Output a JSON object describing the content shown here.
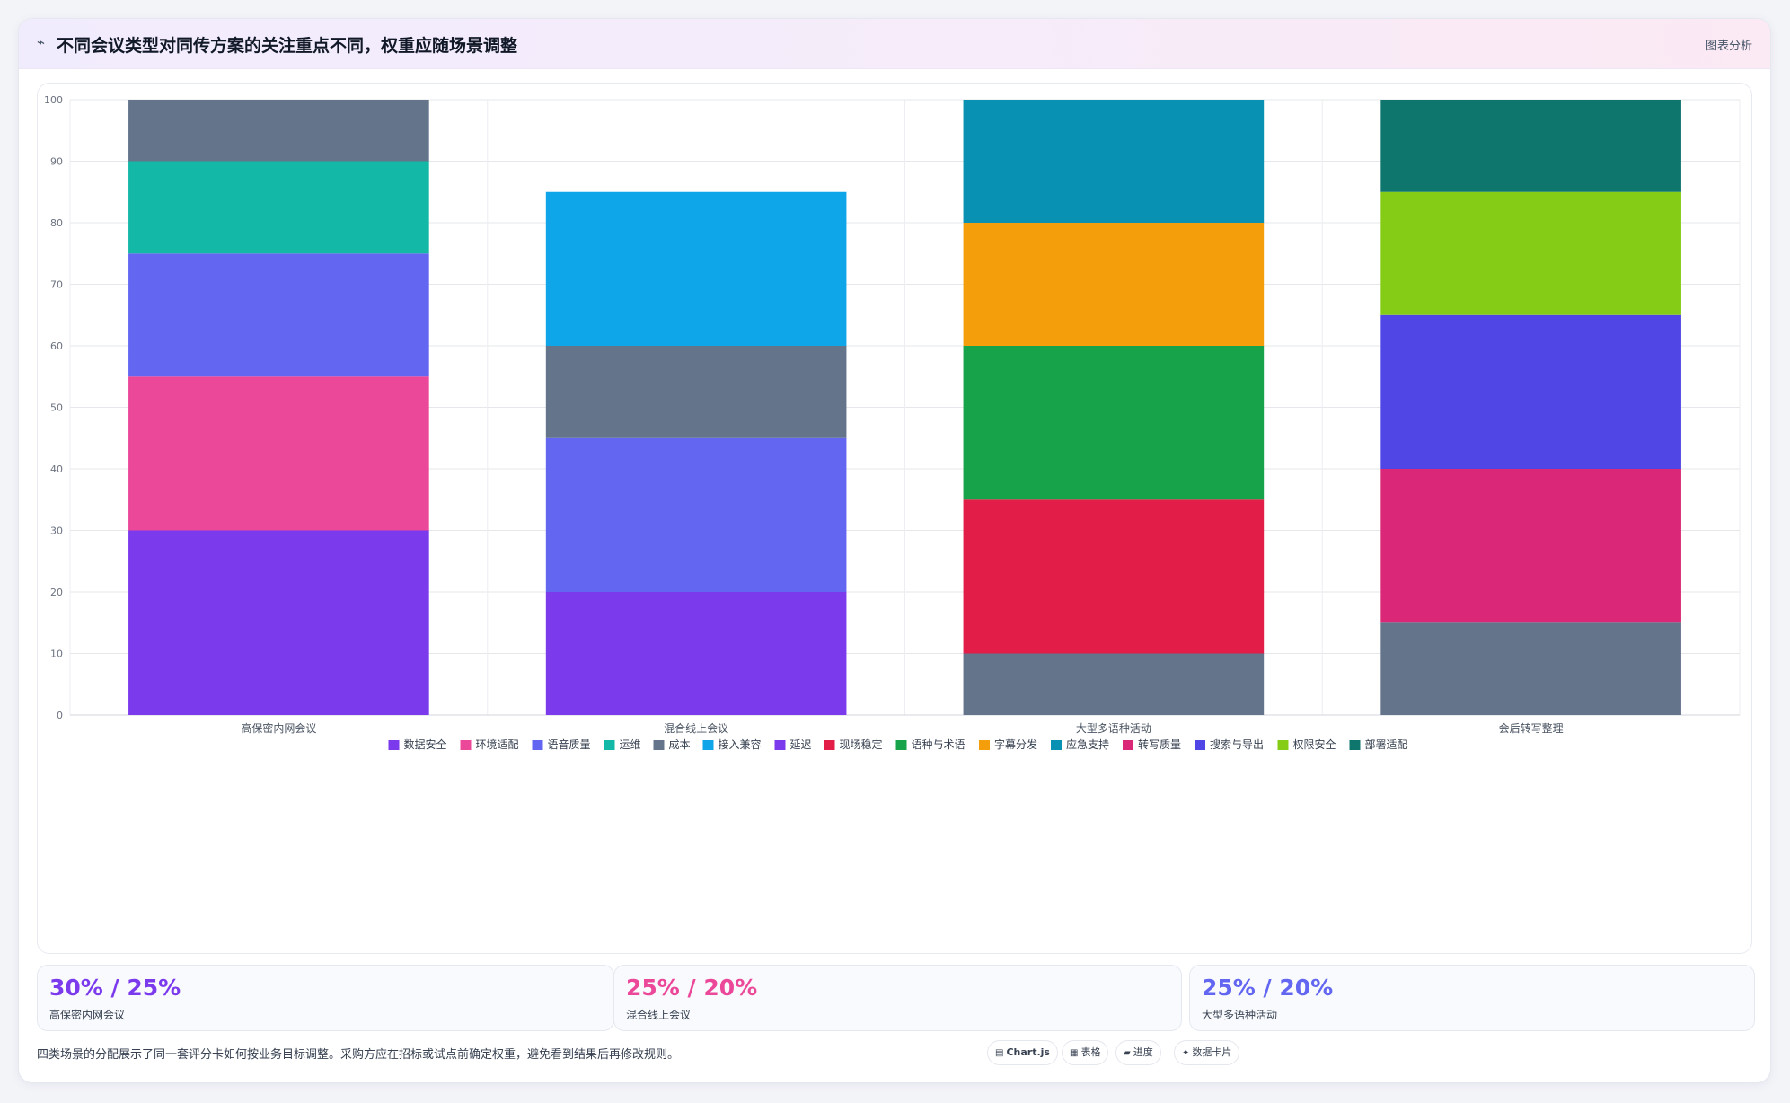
{
  "header": {
    "icon": "sparkline-icon",
    "title": "不同会议类型对同传方案的关注重点不同，权重应随场景调整",
    "action_label": "图表分析"
  },
  "chart_data": {
    "type": "bar",
    "stacked": true,
    "categories": [
      "高保密内网会议",
      "混合线上会议",
      "大型多语种活动",
      "会后转写整理"
    ],
    "ylim": [
      0,
      100
    ],
    "yticks": [
      0,
      10,
      20,
      30,
      40,
      50,
      60,
      70,
      80,
      90,
      100
    ],
    "grid": true,
    "legend_position": "bottom",
    "series": [
      {
        "name": "数据安全",
        "color": "#7c3aed",
        "values": [
          30,
          0,
          0,
          0
        ]
      },
      {
        "name": "环境适配",
        "color": "#ec4899",
        "values": [
          25,
          0,
          0,
          0
        ]
      },
      {
        "name": "语音质量",
        "color": "#6366f1",
        "values": [
          20,
          25,
          0,
          0
        ]
      },
      {
        "name": "运维",
        "color": "#14b8a6",
        "values": [
          15,
          0,
          0,
          0
        ]
      },
      {
        "name": "成本",
        "color": "#64748b",
        "values": [
          10,
          15,
          10,
          15
        ]
      },
      {
        "name": "接入兼容",
        "color": "#0ea5e9",
        "values": [
          0,
          25,
          0,
          0
        ]
      },
      {
        "name": "延迟",
        "color": "#7c3aed",
        "values": [
          0,
          20,
          0,
          0
        ]
      },
      {
        "name": "现场稳定",
        "color": "#e11d48",
        "values": [
          0,
          0,
          25,
          0
        ]
      },
      {
        "name": "语种与术语",
        "color": "#16a34a",
        "values": [
          0,
          0,
          25,
          0
        ]
      },
      {
        "name": "字幕分发",
        "color": "#f59e0b",
        "values": [
          0,
          0,
          20,
          0
        ]
      },
      {
        "name": "应急支持",
        "color": "#0891b2",
        "values": [
          0,
          0,
          20,
          0
        ]
      },
      {
        "name": "转写质量",
        "color": "#db2777",
        "values": [
          0,
          0,
          0,
          25
        ]
      },
      {
        "name": "搜索与导出",
        "color": "#4f46e5",
        "values": [
          0,
          0,
          0,
          25
        ]
      },
      {
        "name": "权限安全",
        "color": "#84cc16",
        "values": [
          0,
          0,
          0,
          20
        ]
      },
      {
        "name": "部署适配",
        "color": "#0f766e",
        "values": [
          0,
          0,
          0,
          15
        ]
      }
    ],
    "stack_order": [
      [
        "数据安全",
        "环境适配",
        "语音质量",
        "运维",
        "成本"
      ],
      [
        "延迟",
        "语音质量",
        "成本",
        "接入兼容"
      ],
      [
        "成本",
        "现场稳定",
        "语种与术语",
        "字幕分发",
        "应急支持"
      ],
      [
        "成本",
        "转写质量",
        "搜索与导出",
        "权限安全",
        "部署适配"
      ]
    ]
  },
  "stats": [
    {
      "value": "30% / 25%",
      "label": "高保密内网会议",
      "color": "#7c3aed"
    },
    {
      "value": "25% / 20%",
      "label": "混合线上会议",
      "color": "#ec4899"
    },
    {
      "value": "25% / 20%",
      "label": "大型多语种活动",
      "color": "#6366f1"
    }
  ],
  "footnote": "四类场景的分配展示了同一套评分卡如何按业务目标调整。采购方应在招标或试点前确定权重，避免看到结果后再修改规则。",
  "chips": [
    {
      "icon": "chart-icon",
      "label": "Chart.js"
    },
    {
      "icon": "table-icon",
      "label": "表格"
    },
    {
      "icon": "progress-icon",
      "label": "进度"
    },
    {
      "icon": "sparkle-icon",
      "label": "数据卡片"
    }
  ]
}
